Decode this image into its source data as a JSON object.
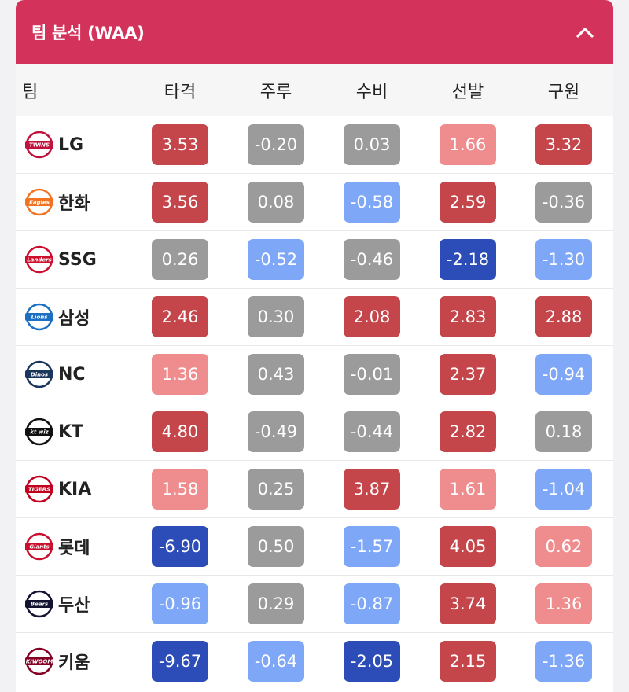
{
  "header": {
    "title": "팀 분석 (WAA)"
  },
  "columns": {
    "team": "팀",
    "stats": [
      "타격",
      "주루",
      "수비",
      "선발",
      "구원"
    ]
  },
  "colors": {
    "dark_red": "#c4454a",
    "light_red": "#ef8c8e",
    "gray": "#9b9b9b",
    "light_blue": "#7ea7f7",
    "dark_blue": "#2c4db7",
    "header": "#d3325a"
  },
  "rows": [
    {
      "team": "LG",
      "logo": "twins-logo-icon",
      "logo_color": "#c0123c",
      "logo_text": "TWINS",
      "cells": [
        {
          "v": "3.53",
          "c": "dark_red"
        },
        {
          "v": "-0.20",
          "c": "gray"
        },
        {
          "v": "0.03",
          "c": "gray"
        },
        {
          "v": "1.66",
          "c": "light_red"
        },
        {
          "v": "3.32",
          "c": "dark_red"
        }
      ]
    },
    {
      "team": "한화",
      "logo": "eagles-logo-icon",
      "logo_color": "#f37321",
      "logo_text": "Eagles",
      "cells": [
        {
          "v": "3.56",
          "c": "dark_red"
        },
        {
          "v": "0.08",
          "c": "gray"
        },
        {
          "v": "-0.58",
          "c": "light_blue"
        },
        {
          "v": "2.59",
          "c": "dark_red"
        },
        {
          "v": "-0.36",
          "c": "gray"
        }
      ]
    },
    {
      "team": "SSG",
      "logo": "landers-logo-icon",
      "logo_color": "#ce0e2d",
      "logo_text": "Landers",
      "cells": [
        {
          "v": "0.26",
          "c": "gray"
        },
        {
          "v": "-0.52",
          "c": "light_blue"
        },
        {
          "v": "-0.46",
          "c": "gray"
        },
        {
          "v": "-2.18",
          "c": "dark_blue"
        },
        {
          "v": "-1.30",
          "c": "light_blue"
        }
      ]
    },
    {
      "team": "삼성",
      "logo": "lions-logo-icon",
      "logo_color": "#1d6fc2",
      "logo_text": "Lions",
      "cells": [
        {
          "v": "2.46",
          "c": "dark_red"
        },
        {
          "v": "0.30",
          "c": "gray"
        },
        {
          "v": "2.08",
          "c": "dark_red"
        },
        {
          "v": "2.83",
          "c": "dark_red"
        },
        {
          "v": "2.88",
          "c": "dark_red"
        }
      ]
    },
    {
      "team": "NC",
      "logo": "dinos-logo-icon",
      "logo_color": "#1b365d",
      "logo_text": "Dinos",
      "cells": [
        {
          "v": "1.36",
          "c": "light_red"
        },
        {
          "v": "0.43",
          "c": "gray"
        },
        {
          "v": "-0.01",
          "c": "gray"
        },
        {
          "v": "2.37",
          "c": "dark_red"
        },
        {
          "v": "-0.94",
          "c": "light_blue"
        }
      ]
    },
    {
      "team": "KT",
      "logo": "ktwiz-logo-icon",
      "logo_color": "#111111",
      "logo_text": "kt wiz",
      "cells": [
        {
          "v": "4.80",
          "c": "dark_red"
        },
        {
          "v": "-0.49",
          "c": "gray"
        },
        {
          "v": "-0.44",
          "c": "gray"
        },
        {
          "v": "2.82",
          "c": "dark_red"
        },
        {
          "v": "0.18",
          "c": "gray"
        }
      ]
    },
    {
      "team": "KIA",
      "logo": "tigers-logo-icon",
      "logo_color": "#c1001f",
      "logo_text": "TIGERS",
      "cells": [
        {
          "v": "1.58",
          "c": "light_red"
        },
        {
          "v": "0.25",
          "c": "gray"
        },
        {
          "v": "3.87",
          "c": "dark_red"
        },
        {
          "v": "1.61",
          "c": "light_red"
        },
        {
          "v": "-1.04",
          "c": "light_blue"
        }
      ]
    },
    {
      "team": "롯데",
      "logo": "giants-logo-icon",
      "logo_color": "#c8102e",
      "logo_text": "Giants",
      "cells": [
        {
          "v": "-6.90",
          "c": "dark_blue"
        },
        {
          "v": "0.50",
          "c": "gray"
        },
        {
          "v": "-1.57",
          "c": "light_blue"
        },
        {
          "v": "4.05",
          "c": "dark_red"
        },
        {
          "v": "0.62",
          "c": "light_red"
        }
      ]
    },
    {
      "team": "두산",
      "logo": "bears-logo-icon",
      "logo_color": "#131230",
      "logo_text": "Bears",
      "cells": [
        {
          "v": "-0.96",
          "c": "light_blue"
        },
        {
          "v": "0.29",
          "c": "gray"
        },
        {
          "v": "-0.87",
          "c": "light_blue"
        },
        {
          "v": "3.74",
          "c": "dark_red"
        },
        {
          "v": "1.36",
          "c": "light_red"
        }
      ]
    },
    {
      "team": "키움",
      "logo": "kiwoom-logo-icon",
      "logo_color": "#820024",
      "logo_text": "KIWOOM",
      "cells": [
        {
          "v": "-9.67",
          "c": "dark_blue"
        },
        {
          "v": "-0.64",
          "c": "light_blue"
        },
        {
          "v": "-2.05",
          "c": "dark_blue"
        },
        {
          "v": "2.15",
          "c": "dark_red"
        },
        {
          "v": "-1.36",
          "c": "light_blue"
        }
      ]
    }
  ]
}
